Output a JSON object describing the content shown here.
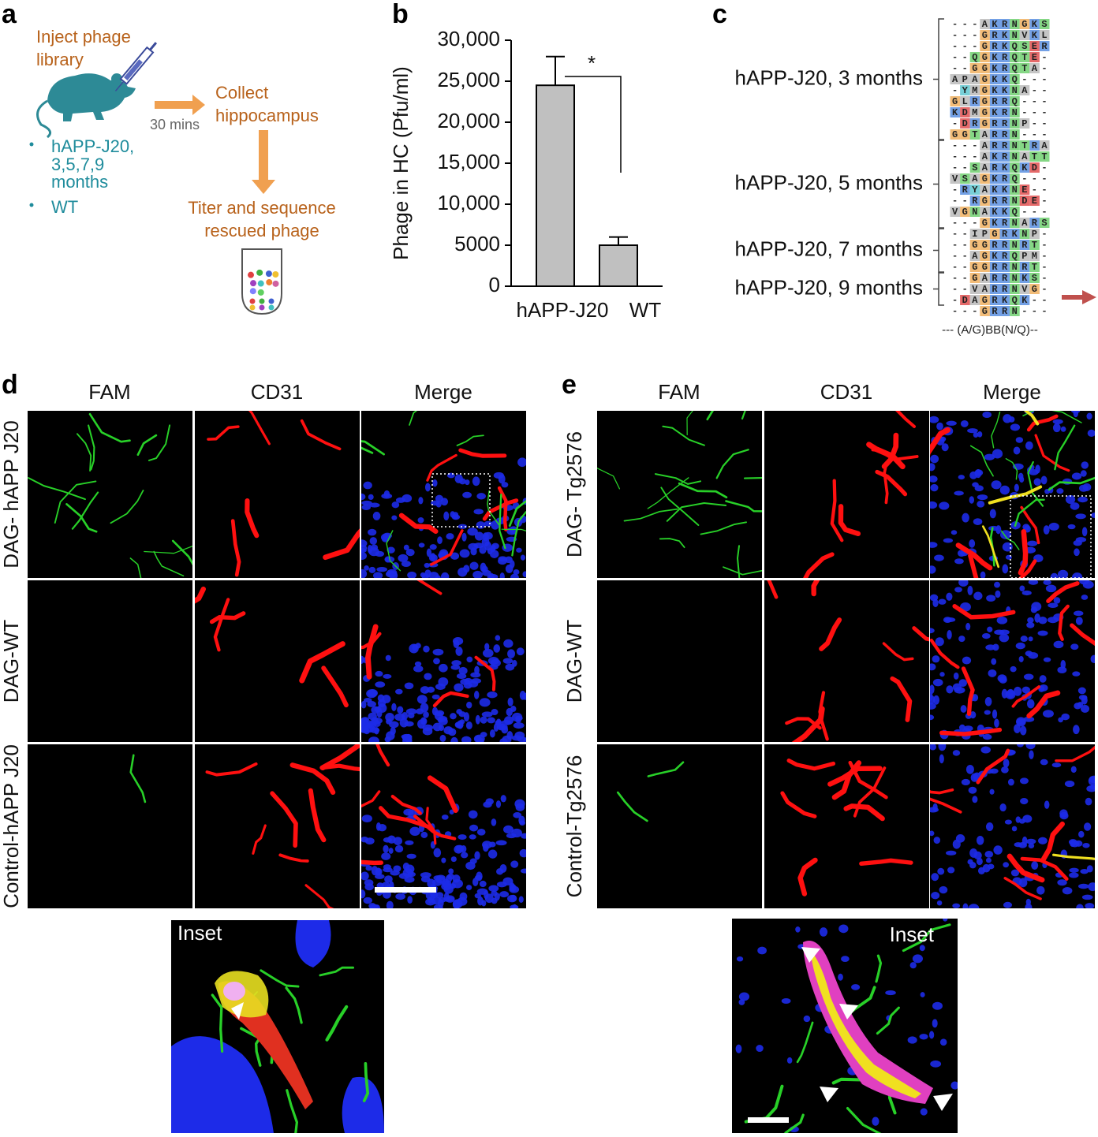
{
  "panel_a": {
    "label": "a",
    "inject": [
      "Inject phage",
      "library"
    ],
    "time": "30 mins",
    "collect": [
      "Collect",
      "hippocampus"
    ],
    "groups": [
      [
        "hAPP-J20,",
        "3,5,7,9",
        "months"
      ],
      [
        "WT"
      ]
    ],
    "titer": [
      "Titer and sequence",
      "rescued phage"
    ]
  },
  "chart_data": {
    "type": "bar",
    "label": "b",
    "ylabel": "Phage in HC (Pfu/ml)",
    "categories": [
      "hAPP-J20",
      "WT"
    ],
    "values": [
      24500,
      5000
    ],
    "errors": [
      3500,
      1000
    ],
    "color": "#c0c0c0",
    "annotation": "*",
    "ylim": [
      0,
      30000
    ],
    "yticks": [
      0,
      5000,
      {
        "value": 10000,
        "label": "10,000"
      },
      {
        "value": 15000,
        "label": "15,000"
      },
      {
        "value": 20000,
        "label": "20,000"
      },
      {
        "value": 25000,
        "label": "25,000"
      },
      {
        "value": 30000,
        "label": "30,000"
      }
    ]
  },
  "panel_c": {
    "label": "c",
    "groups": [
      {
        "name": "hAPP-J20, 3 months",
        "sequences": [
          "---AKRNGKS",
          "---GRKNVKL",
          "---GRKQSER",
          "--QGKRQTE-",
          "--GGKRQTA-",
          "APAGKKQ---",
          "-YMGKKNA--",
          "GLRGRRQ---",
          "KDMGKRN---",
          "-DRGRRNP--",
          "GGTARRN---"
        ]
      },
      {
        "name": "hAPP-J20, 5 months",
        "sequences": [
          "---ARRNTRA",
          "---AKRNATT",
          "--SARKQKD-",
          "VSAGKRQ---",
          "-RYAKKNE--",
          "--RGRRNDE-",
          "VGNAKKQ---",
          "---GKRNARS"
        ]
      },
      {
        "name": "hAPP-J20, 7 months",
        "sequences": [
          "--IPGRKNP-",
          "--GGRRNRT-",
          "--AGKRQPM-",
          "--GGRRNRT-"
        ]
      },
      {
        "name": "hAPP-J20, 9 months",
        "sequences": [
          "--GARRNKS-",
          "--VARRNVG-",
          "-DAGRKQK--"
        ]
      }
    ],
    "final_row": "---GRRN---",
    "motif": "--- (A/G)BB(N/Q)--"
  },
  "panel_d": {
    "label": "d",
    "columns": [
      "FAM",
      "CD31",
      "Merge"
    ],
    "rows": [
      "DAG- hAPP J20",
      "DAG-WT",
      "Control-hAPP J20"
    ],
    "inset": "Inset"
  },
  "panel_e": {
    "label": "e",
    "columns": [
      "FAM",
      "CD31",
      "Merge"
    ],
    "rows": [
      "DAG- Tg2576",
      "DAG-WT",
      "Control-Tg2576"
    ],
    "inset": "Inset"
  }
}
